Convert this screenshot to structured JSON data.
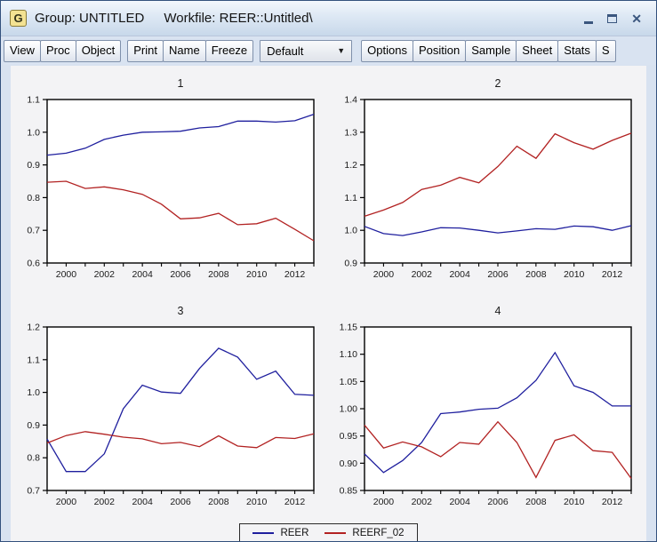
{
  "window": {
    "icon_letter": "G",
    "title_group": "Group: UNTITLED",
    "title_workfile": "Workfile: REER::Untitled\\",
    "close_glyph": "✕"
  },
  "toolbar": {
    "buttons_left": [
      "View",
      "Proc",
      "Object"
    ],
    "buttons_mid": [
      "Print",
      "Name",
      "Freeze"
    ],
    "dropdown": {
      "value": "Default",
      "arrow": "▼"
    },
    "buttons_right": [
      "Options",
      "Position",
      "Sample",
      "Sheet",
      "Stats",
      "S"
    ]
  },
  "legend": {
    "items": [
      {
        "label": "REER",
        "color": "#1f1f9e"
      },
      {
        "label": "REERF_02",
        "color": "#b22222"
      }
    ]
  },
  "colors": {
    "blue_line": "#1f1f9e",
    "red_line": "#b22222",
    "plot_bg": "#ffffff",
    "frame": "#000000",
    "canvas_bg": "#f3f3f5"
  },
  "chart_data": [
    {
      "type": "line",
      "title": "1",
      "x": [
        1999,
        2000,
        2001,
        2002,
        2003,
        2004,
        2005,
        2006,
        2007,
        2008,
        2009,
        2010,
        2011,
        2012,
        2013
      ],
      "xtick_labels": [
        "2000",
        "2002",
        "2004",
        "2006",
        "2008",
        "2010",
        "2012"
      ],
      "ylim": [
        0.6,
        1.1
      ],
      "yticks": [
        0.6,
        0.7,
        0.8,
        0.9,
        1.0,
        1.1
      ],
      "ytick_labels": [
        "0.6",
        "0.7",
        "0.8",
        "0.9",
        "1.0",
        "1.1"
      ],
      "series": [
        {
          "name": "REER",
          "color": "#1f1f9e",
          "values": [
            0.93,
            0.936,
            0.951,
            0.978,
            0.991,
            1.0,
            1.001,
            1.003,
            1.013,
            1.017,
            1.034,
            1.034,
            1.031,
            1.035,
            1.055
          ]
        },
        {
          "name": "REERF_02",
          "color": "#b22222",
          "values": [
            0.847,
            0.85,
            0.828,
            0.833,
            0.824,
            0.81,
            0.78,
            0.735,
            0.738,
            0.752,
            0.717,
            0.72,
            0.737,
            0.703,
            0.668
          ]
        }
      ]
    },
    {
      "type": "line",
      "title": "2",
      "x": [
        1999,
        2000,
        2001,
        2002,
        2003,
        2004,
        2005,
        2006,
        2007,
        2008,
        2009,
        2010,
        2011,
        2012,
        2013
      ],
      "xtick_labels": [
        "2000",
        "2002",
        "2004",
        "2006",
        "2008",
        "2010",
        "2012"
      ],
      "ylim": [
        0.9,
        1.4
      ],
      "yticks": [
        0.9,
        1.0,
        1.1,
        1.2,
        1.3,
        1.4
      ],
      "ytick_labels": [
        "0.9",
        "1.0",
        "1.1",
        "1.2",
        "1.3",
        "1.4"
      ],
      "series": [
        {
          "name": "REER",
          "color": "#1f1f9e",
          "values": [
            1.012,
            0.99,
            0.984,
            0.995,
            1.008,
            1.007,
            1.0,
            0.992,
            0.998,
            1.005,
            1.003,
            1.013,
            1.011,
            1.0,
            1.014
          ]
        },
        {
          "name": "REERF_02",
          "color": "#b22222",
          "values": [
            1.043,
            1.062,
            1.085,
            1.125,
            1.138,
            1.162,
            1.145,
            1.195,
            1.257,
            1.22,
            1.295,
            1.268,
            1.248,
            1.275,
            1.297
          ]
        }
      ]
    },
    {
      "type": "line",
      "title": "3",
      "x": [
        1999,
        2000,
        2001,
        2002,
        2003,
        2004,
        2005,
        2006,
        2007,
        2008,
        2009,
        2010,
        2011,
        2012,
        2013
      ],
      "xtick_labels": [
        "2000",
        "2002",
        "2004",
        "2006",
        "2008",
        "2010",
        "2012"
      ],
      "ylim": [
        0.7,
        1.2
      ],
      "yticks": [
        0.7,
        0.8,
        0.9,
        1.0,
        1.1,
        1.2
      ],
      "ytick_labels": [
        "0.7",
        "0.8",
        "0.9",
        "1.0",
        "1.1",
        "1.2"
      ],
      "series": [
        {
          "name": "REER",
          "color": "#1f1f9e",
          "values": [
            0.857,
            0.758,
            0.758,
            0.812,
            0.95,
            1.022,
            1.001,
            0.997,
            1.073,
            1.135,
            1.108,
            1.04,
            1.065,
            0.994,
            0.991
          ]
        },
        {
          "name": "REERF_02",
          "color": "#b22222",
          "values": [
            0.845,
            0.868,
            0.88,
            0.872,
            0.863,
            0.858,
            0.843,
            0.847,
            0.834,
            0.867,
            0.836,
            0.831,
            0.862,
            0.859,
            0.873
          ]
        }
      ]
    },
    {
      "type": "line",
      "title": "4",
      "x": [
        1999,
        2000,
        2001,
        2002,
        2003,
        2004,
        2005,
        2006,
        2007,
        2008,
        2009,
        2010,
        2011,
        2012,
        2013
      ],
      "xtick_labels": [
        "2000",
        "2002",
        "2004",
        "2006",
        "2008",
        "2010",
        "2012"
      ],
      "ylim": [
        0.85,
        1.15
      ],
      "yticks": [
        0.85,
        0.9,
        0.95,
        1.0,
        1.05,
        1.1,
        1.15
      ],
      "ytick_labels": [
        "0.85",
        "0.90",
        "0.95",
        "1.00",
        "1.05",
        "1.10",
        "1.15"
      ],
      "series": [
        {
          "name": "REER",
          "color": "#1f1f9e",
          "values": [
            0.917,
            0.883,
            0.905,
            0.938,
            0.991,
            0.994,
            0.999,
            1.001,
            1.02,
            1.052,
            1.103,
            1.042,
            1.03,
            1.005,
            1.005
          ]
        },
        {
          "name": "REERF_02",
          "color": "#b22222",
          "values": [
            0.97,
            0.928,
            0.939,
            0.93,
            0.912,
            0.938,
            0.935,
            0.976,
            0.938,
            0.874,
            0.942,
            0.952,
            0.923,
            0.92,
            0.872
          ]
        }
      ]
    }
  ]
}
